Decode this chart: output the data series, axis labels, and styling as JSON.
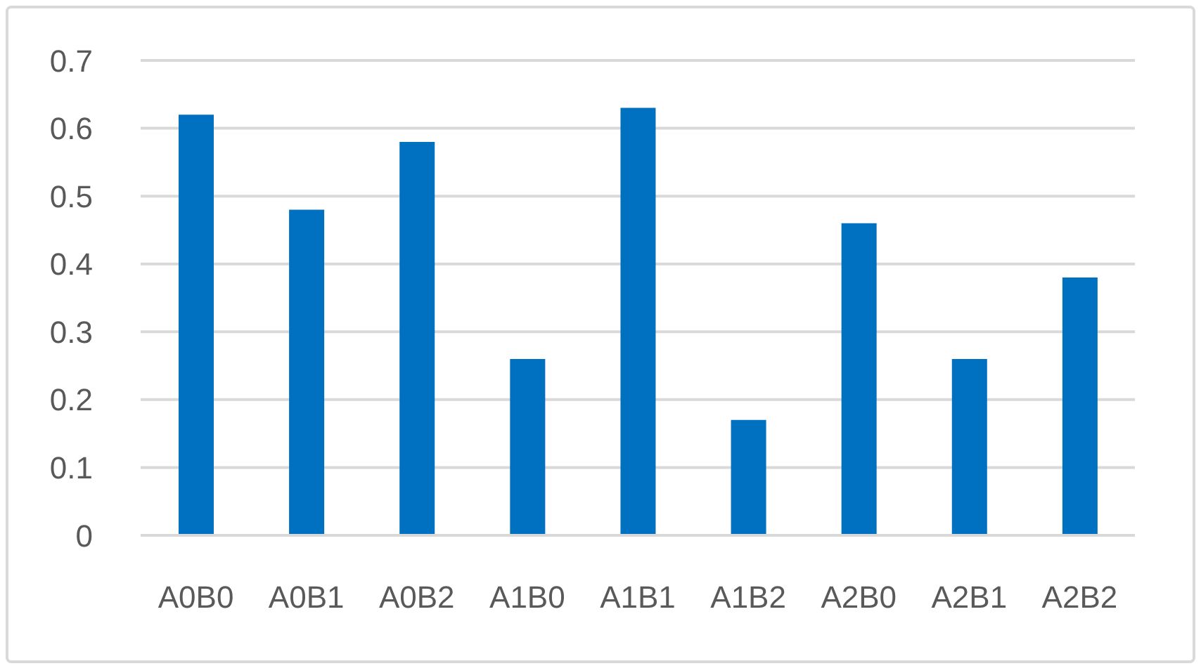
{
  "chart_data": {
    "type": "bar",
    "categories": [
      "A0B0",
      "A0B1",
      "A0B2",
      "A1B0",
      "A1B1",
      "A1B2",
      "A2B0",
      "A2B1",
      "A2B2"
    ],
    "values": [
      0.62,
      0.48,
      0.58,
      0.26,
      0.63,
      0.17,
      0.46,
      0.26,
      0.38
    ],
    "color": "#0070c0",
    "ylim": [
      0,
      0.7
    ],
    "yticks": [
      0,
      0.1,
      0.2,
      0.3,
      0.4,
      0.5,
      0.6,
      0.7
    ],
    "grid": "y"
  }
}
